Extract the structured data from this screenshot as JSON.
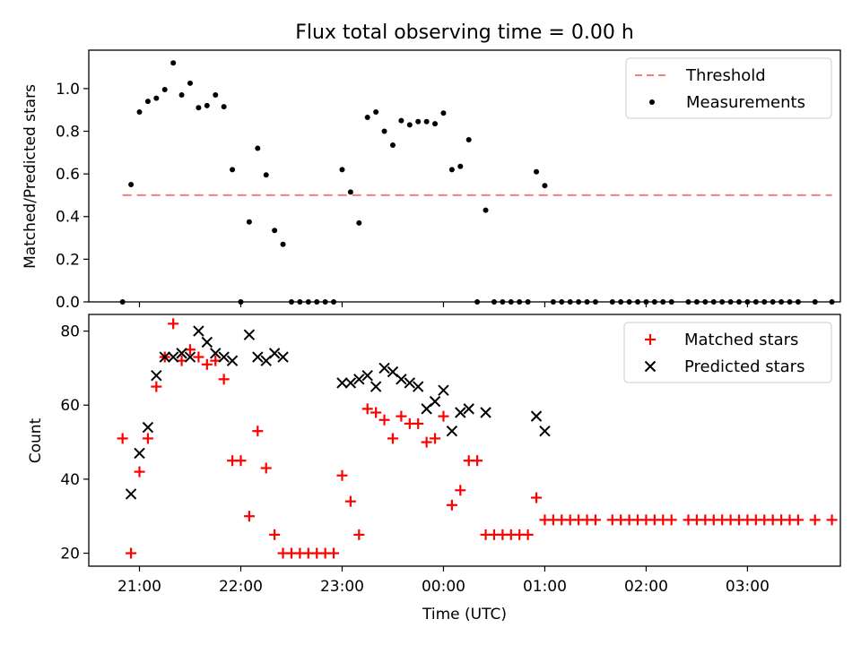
{
  "chart_data": [
    {
      "type": "scatter",
      "title": "Flux total observing time = 0.00 h",
      "xlabel": "",
      "ylabel": "Matched/Predicted stars",
      "xlim": [
        "20:30",
        "03:55"
      ],
      "ylim": [
        0,
        1.18
      ],
      "yticks": [
        "0.0",
        "0.2",
        "0.4",
        "0.6",
        "0.8",
        "1.0"
      ],
      "legend_placement": "top-right",
      "threshold": {
        "name": "Threshold",
        "value": 0.5,
        "x": [
          "20:50",
          "03:50"
        ],
        "color": "#f08080",
        "style": "dashed"
      },
      "series": [
        {
          "name": "Measurements",
          "color": "#000000",
          "marker": "dot",
          "points": [
            [
              "20:50",
              0.0
            ],
            [
              "20:55",
              0.55
            ],
            [
              "21:00",
              0.89
            ],
            [
              "21:05",
              0.94
            ],
            [
              "21:10",
              0.955
            ],
            [
              "21:15",
              0.995
            ],
            [
              "21:20",
              1.12
            ],
            [
              "21:25",
              0.97
            ],
            [
              "21:30",
              1.025
            ],
            [
              "21:35",
              0.91
            ],
            [
              "21:40",
              0.92
            ],
            [
              "21:45",
              0.97
            ],
            [
              "21:50",
              0.915
            ],
            [
              "21:55",
              0.62
            ],
            [
              "22:00",
              0.0
            ],
            [
              "22:05",
              0.375
            ],
            [
              "22:10",
              0.72
            ],
            [
              "22:15",
              0.595
            ],
            [
              "22:20",
              0.335
            ],
            [
              "22:25",
              0.27
            ],
            [
              "22:30",
              0.0
            ],
            [
              "22:35",
              0.0
            ],
            [
              "22:40",
              0.0
            ],
            [
              "22:45",
              0.0
            ],
            [
              "22:50",
              0.0
            ],
            [
              "22:55",
              0.0
            ],
            [
              "23:00",
              0.62
            ],
            [
              "23:05",
              0.515
            ],
            [
              "23:10",
              0.37
            ],
            [
              "23:15",
              0.865
            ],
            [
              "23:20",
              0.89
            ],
            [
              "23:25",
              0.8
            ],
            [
              "23:30",
              0.735
            ],
            [
              "23:35",
              0.85
            ],
            [
              "23:40",
              0.83
            ],
            [
              "23:45",
              0.845
            ],
            [
              "23:50",
              0.845
            ],
            [
              "23:55",
              0.835
            ],
            [
              "00:00",
              0.885
            ],
            [
              "00:05",
              0.62
            ],
            [
              "00:10",
              0.635
            ],
            [
              "00:15",
              0.76
            ],
            [
              "00:20",
              0.0
            ],
            [
              "00:25",
              0.43
            ],
            [
              "00:30",
              0.0
            ],
            [
              "00:35",
              0.0
            ],
            [
              "00:40",
              0.0
            ],
            [
              "00:45",
              0.0
            ],
            [
              "00:50",
              0.0
            ],
            [
              "00:55",
              0.61
            ],
            [
              "01:00",
              0.545
            ],
            [
              "01:05",
              0.0
            ],
            [
              "01:10",
              0.0
            ],
            [
              "01:15",
              0.0
            ],
            [
              "01:20",
              0.0
            ],
            [
              "01:25",
              0.0
            ],
            [
              "01:30",
              0.0
            ],
            [
              "01:40",
              0.0
            ],
            [
              "01:45",
              0.0
            ],
            [
              "01:50",
              0.0
            ],
            [
              "01:55",
              0.0
            ],
            [
              "02:00",
              0.0
            ],
            [
              "02:05",
              0.0
            ],
            [
              "02:10",
              0.0
            ],
            [
              "02:15",
              0.0
            ],
            [
              "02:25",
              0.0
            ],
            [
              "02:30",
              0.0
            ],
            [
              "02:35",
              0.0
            ],
            [
              "02:40",
              0.0
            ],
            [
              "02:45",
              0.0
            ],
            [
              "02:50",
              0.0
            ],
            [
              "02:55",
              0.0
            ],
            [
              "03:00",
              0.0
            ],
            [
              "03:05",
              0.0
            ],
            [
              "03:10",
              0.0
            ],
            [
              "03:15",
              0.0
            ],
            [
              "03:20",
              0.0
            ],
            [
              "03:25",
              0.0
            ],
            [
              "03:30",
              0.0
            ],
            [
              "03:40",
              0.0
            ],
            [
              "03:50",
              0.0
            ]
          ]
        }
      ]
    },
    {
      "type": "scatter",
      "title": "",
      "xlabel": "Time (UTC)",
      "ylabel": "Count",
      "xlim": [
        "20:30",
        "03:55"
      ],
      "ylim": [
        16.5,
        84.5
      ],
      "yticks": [
        "20",
        "40",
        "60",
        "80"
      ],
      "xticks": [
        "21:00",
        "22:00",
        "23:00",
        "00:00",
        "01:00",
        "02:00",
        "03:00"
      ],
      "legend_placement": "top-right",
      "series": [
        {
          "name": "Matched stars",
          "color": "#ff0000",
          "marker": "plus",
          "points": [
            [
              "20:50",
              51
            ],
            [
              "20:55",
              20
            ],
            [
              "21:00",
              42
            ],
            [
              "21:05",
              51
            ],
            [
              "21:10",
              65
            ],
            [
              "21:15",
              73
            ],
            [
              "21:20",
              82
            ],
            [
              "21:25",
              72
            ],
            [
              "21:30",
              75
            ],
            [
              "21:35",
              73
            ],
            [
              "21:40",
              71
            ],
            [
              "21:45",
              72
            ],
            [
              "21:50",
              67
            ],
            [
              "21:55",
              45
            ],
            [
              "22:00",
              45
            ],
            [
              "22:05",
              30
            ],
            [
              "22:10",
              53
            ],
            [
              "22:15",
              43
            ],
            [
              "22:20",
              25
            ],
            [
              "22:25",
              20
            ],
            [
              "22:30",
              20
            ],
            [
              "22:35",
              20
            ],
            [
              "22:40",
              20
            ],
            [
              "22:45",
              20
            ],
            [
              "22:50",
              20
            ],
            [
              "22:55",
              20
            ],
            [
              "23:00",
              41
            ],
            [
              "23:05",
              34
            ],
            [
              "23:10",
              25
            ],
            [
              "23:15",
              59
            ],
            [
              "23:20",
              58
            ],
            [
              "23:25",
              56
            ],
            [
              "23:30",
              51
            ],
            [
              "23:35",
              57
            ],
            [
              "23:40",
              55
            ],
            [
              "23:45",
              55
            ],
            [
              "23:50",
              50
            ],
            [
              "23:55",
              51
            ],
            [
              "00:00",
              57
            ],
            [
              "00:05",
              33
            ],
            [
              "00:10",
              37
            ],
            [
              "00:15",
              45
            ],
            [
              "00:20",
              45
            ],
            [
              "00:25",
              25
            ],
            [
              "00:30",
              25
            ],
            [
              "00:35",
              25
            ],
            [
              "00:40",
              25
            ],
            [
              "00:45",
              25
            ],
            [
              "00:50",
              25
            ],
            [
              "00:55",
              35
            ],
            [
              "01:00",
              29
            ],
            [
              "01:05",
              29
            ],
            [
              "01:10",
              29
            ],
            [
              "01:15",
              29
            ],
            [
              "01:20",
              29
            ],
            [
              "01:25",
              29
            ],
            [
              "01:30",
              29
            ],
            [
              "01:40",
              29
            ],
            [
              "01:45",
              29
            ],
            [
              "01:50",
              29
            ],
            [
              "01:55",
              29
            ],
            [
              "02:00",
              29
            ],
            [
              "02:05",
              29
            ],
            [
              "02:10",
              29
            ],
            [
              "02:15",
              29
            ],
            [
              "02:25",
              29
            ],
            [
              "02:30",
              29
            ],
            [
              "02:35",
              29
            ],
            [
              "02:40",
              29
            ],
            [
              "02:45",
              29
            ],
            [
              "02:50",
              29
            ],
            [
              "02:55",
              29
            ],
            [
              "03:00",
              29
            ],
            [
              "03:05",
              29
            ],
            [
              "03:10",
              29
            ],
            [
              "03:15",
              29
            ],
            [
              "03:20",
              29
            ],
            [
              "03:25",
              29
            ],
            [
              "03:30",
              29
            ],
            [
              "03:40",
              29
            ],
            [
              "03:50",
              29
            ]
          ]
        },
        {
          "name": "Predicted stars",
          "color": "#000000",
          "marker": "x",
          "points": [
            [
              "20:55",
              36
            ],
            [
              "21:00",
              47
            ],
            [
              "21:05",
              54
            ],
            [
              "21:10",
              68
            ],
            [
              "21:15",
              73
            ],
            [
              "21:20",
              73
            ],
            [
              "21:25",
              74
            ],
            [
              "21:30",
              73
            ],
            [
              "21:35",
              80
            ],
            [
              "21:40",
              77
            ],
            [
              "21:45",
              74
            ],
            [
              "21:50",
              73
            ],
            [
              "21:55",
              72
            ],
            [
              "22:05",
              79
            ],
            [
              "22:10",
              73
            ],
            [
              "22:15",
              72
            ],
            [
              "22:20",
              74
            ],
            [
              "22:25",
              73
            ],
            [
              "23:00",
              66
            ],
            [
              "23:05",
              66
            ],
            [
              "23:10",
              67
            ],
            [
              "23:15",
              68
            ],
            [
              "23:20",
              65
            ],
            [
              "23:25",
              70
            ],
            [
              "23:30",
              69
            ],
            [
              "23:35",
              67
            ],
            [
              "23:40",
              66
            ],
            [
              "23:45",
              65
            ],
            [
              "23:50",
              59
            ],
            [
              "23:55",
              61
            ],
            [
              "00:00",
              64
            ],
            [
              "00:05",
              53
            ],
            [
              "00:10",
              58
            ],
            [
              "00:15",
              59
            ],
            [
              "00:25",
              58
            ],
            [
              "00:55",
              57
            ],
            [
              "01:00",
              53
            ]
          ]
        }
      ]
    }
  ]
}
